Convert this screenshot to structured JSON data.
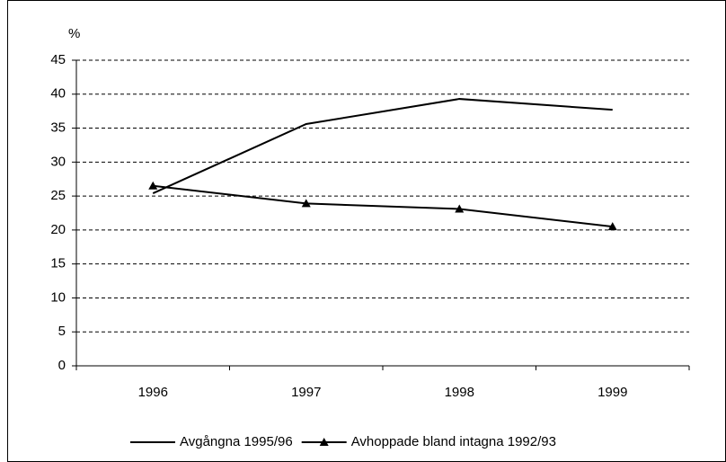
{
  "chart_data": {
    "type": "line",
    "ylabel": "%",
    "categories": [
      "1996",
      "1997",
      "1998",
      "1999"
    ],
    "series": [
      {
        "name": "Avgångna 1995/96",
        "color": "#000000",
        "marker": "none",
        "values": [
          25.4,
          35.6,
          39.3,
          37.7
        ]
      },
      {
        "name": "Avhoppade bland intagna 1992/93",
        "color": "#000000",
        "marker": "triangle",
        "values": [
          26.5,
          23.9,
          23.1,
          20.5
        ]
      }
    ],
    "ylim": [
      0,
      45
    ],
    "yticks": [
      0,
      5,
      10,
      15,
      20,
      25,
      30,
      35,
      40,
      45
    ],
    "grid": true,
    "legend": "bottom"
  }
}
